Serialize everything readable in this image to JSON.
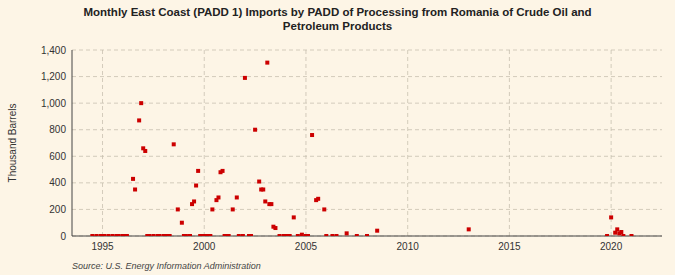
{
  "chart_data": {
    "type": "scatter",
    "title": "Monthly East Coast (PADD 1) Imports by PADD of Processing from Romania of Crude Oil and\nPetroleum Products",
    "ylabel": "Thousand Barrels",
    "source": "Source: U.S. Energy Information Administration",
    "color": "#cc0000",
    "marker": "square",
    "grid": true,
    "xlim": [
      1993.5,
      2022.5
    ],
    "xticks": [
      1995,
      2000,
      2005,
      2010,
      2015,
      2020
    ],
    "ylim": [
      0,
      1400
    ],
    "yticks": [
      0,
      200,
      400,
      600,
      800,
      {
        "value": 1000,
        "label": "1,000"
      },
      {
        "value": 1200,
        "label": "1,200"
      },
      {
        "value": 1400,
        "label": "1,400"
      }
    ],
    "x": [
      1994.5,
      1994.7,
      1994.9,
      1995.0,
      1995.1,
      1995.3,
      1995.5,
      1995.7,
      1995.8,
      1996.0,
      1996.1,
      1996.2,
      1996.5,
      1996.6,
      1996.8,
      1996.9,
      1997.0,
      1997.1,
      1997.2,
      1997.3,
      1997.5,
      1997.7,
      1997.8,
      1998.0,
      1998.1,
      1998.2,
      1998.3,
      1998.5,
      1998.7,
      1998.9,
      1999.0,
      1999.1,
      1999.3,
      1999.4,
      1999.5,
      1999.6,
      1999.7,
      1999.8,
      1999.9,
      2000.0,
      2000.1,
      2000.2,
      2000.3,
      2000.4,
      2000.6,
      2000.7,
      2000.8,
      2000.9,
      2001.0,
      2001.1,
      2001.2,
      2001.4,
      2001.6,
      2001.7,
      2001.9,
      2002.0,
      2002.2,
      2002.3,
      2002.5,
      2002.7,
      2002.8,
      2002.9,
      2003.0,
      2003.1,
      2003.2,
      2003.3,
      2003.4,
      2003.5,
      2003.7,
      2003.9,
      2004.0,
      2004.1,
      2004.2,
      2004.4,
      2004.6,
      2004.8,
      2005.0,
      2005.1,
      2005.3,
      2005.5,
      2005.6,
      2005.9,
      2006.0,
      2006.3,
      2006.5,
      2007.0,
      2007.5,
      2008.0,
      2008.5,
      2013.0,
      2019.8,
      2020.0,
      2020.2,
      2020.3,
      2020.4,
      2020.5,
      2020.6,
      2021.0
    ],
    "values": [
      0,
      0,
      0,
      0,
      0,
      0,
      0,
      0,
      0,
      0,
      0,
      0,
      430,
      350,
      870,
      1000,
      660,
      640,
      0,
      0,
      0,
      0,
      0,
      0,
      0,
      0,
      0,
      690,
      200,
      100,
      0,
      0,
      0,
      240,
      260,
      380,
      490,
      0,
      0,
      0,
      0,
      0,
      0,
      200,
      270,
      290,
      480,
      490,
      0,
      0,
      0,
      200,
      290,
      0,
      0,
      1190,
      0,
      0,
      800,
      410,
      350,
      350,
      260,
      1305,
      240,
      240,
      70,
      60,
      0,
      0,
      0,
      0,
      0,
      140,
      0,
      10,
      0,
      0,
      760,
      270,
      280,
      200,
      0,
      0,
      0,
      20,
      0,
      0,
      40,
      50,
      0,
      140,
      25,
      50,
      20,
      30,
      0,
      0
    ]
  }
}
